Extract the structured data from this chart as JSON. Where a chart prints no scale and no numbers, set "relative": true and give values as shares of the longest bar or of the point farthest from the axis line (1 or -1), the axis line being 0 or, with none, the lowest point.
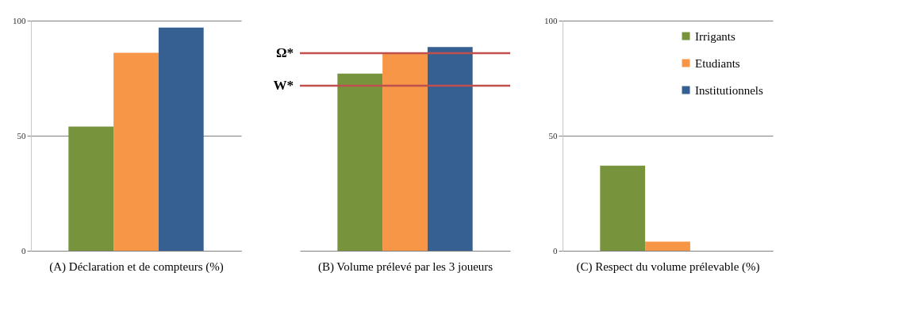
{
  "chart_data": [
    {
      "type": "bar",
      "xlabel": "(A) Déclaration et de compteurs (%)",
      "categories": [
        null
      ],
      "ylim": [
        0,
        100
      ],
      "yticks": [
        0,
        50,
        100
      ],
      "grid": "y",
      "series": [
        {
          "color": "#77933c",
          "values": [
            54
          ]
        },
        {
          "color": "#f79646",
          "values": [
            86
          ]
        },
        {
          "color": "#376092",
          "values": [
            97
          ]
        }
      ]
    },
    {
      "type": "bar",
      "xlabel": "(B) Volume prélevé par les 3 joueurs",
      "categories": [
        null
      ],
      "relative": true,
      "series": [
        {
          "color": "#77933c",
          "values": [
            0.87
          ]
        },
        {
          "color": "#f79646",
          "values": [
            0.97
          ]
        },
        {
          "color": "#376092",
          "values": [
            1
          ]
        }
      ],
      "ref_lines": [
        {
          "axis": "y",
          "value": 0.97,
          "label": "Ω*",
          "color": "#c0504d"
        },
        {
          "axis": "y",
          "value": 0.81,
          "label": "W*",
          "color": "#c0504d"
        }
      ]
    },
    {
      "type": "bar",
      "xlabel": "(C) Respect du volume prélevable (%)",
      "categories": [
        null
      ],
      "ylim": [
        0,
        100
      ],
      "yticks": [
        0,
        50,
        100
      ],
      "grid": "y",
      "legend": "top right",
      "series": [
        {
          "name": "Irrigants",
          "color": "#77933c",
          "values": [
            37
          ]
        },
        {
          "name": "Etudiants",
          "color": "#f79646",
          "values": [
            4
          ]
        },
        {
          "name": "Institutionnels",
          "color": "#376092",
          "values": [
            0
          ]
        }
      ]
    }
  ]
}
